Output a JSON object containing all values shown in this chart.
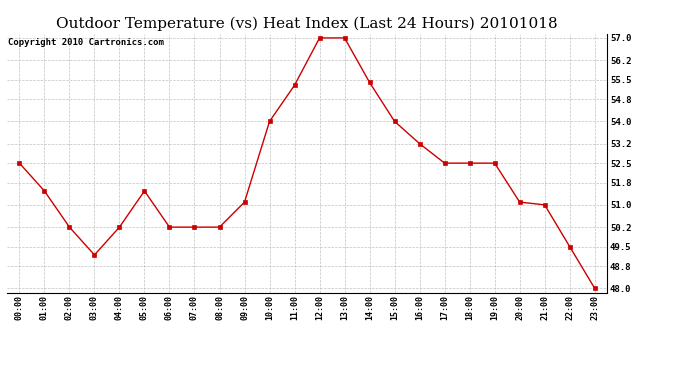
{
  "title": "Outdoor Temperature (vs) Heat Index (Last 24 Hours) 20101018",
  "copyright": "Copyright 2010 Cartronics.com",
  "x_labels": [
    "00:00",
    "01:00",
    "02:00",
    "03:00",
    "04:00",
    "05:00",
    "06:00",
    "07:00",
    "08:00",
    "09:00",
    "10:00",
    "11:00",
    "12:00",
    "13:00",
    "14:00",
    "15:00",
    "16:00",
    "17:00",
    "18:00",
    "19:00",
    "20:00",
    "21:00",
    "22:00",
    "23:00"
  ],
  "y_values": [
    52.5,
    51.5,
    50.2,
    49.2,
    50.2,
    51.5,
    50.2,
    50.2,
    50.2,
    51.1,
    54.0,
    55.3,
    57.0,
    57.0,
    55.4,
    54.0,
    53.2,
    52.5,
    52.5,
    52.5,
    51.1,
    51.0,
    49.5,
    48.0
  ],
  "line_color": "#cc0000",
  "marker_color": "#cc0000",
  "bg_color": "#ffffff",
  "grid_color": "#bbbbbb",
  "ylim_min": 47.85,
  "ylim_max": 57.15,
  "yticks": [
    48.0,
    48.8,
    49.5,
    50.2,
    51.0,
    51.8,
    52.5,
    53.2,
    54.0,
    54.8,
    55.5,
    56.2,
    57.0
  ],
  "title_fontsize": 11,
  "copyright_fontsize": 6.5
}
